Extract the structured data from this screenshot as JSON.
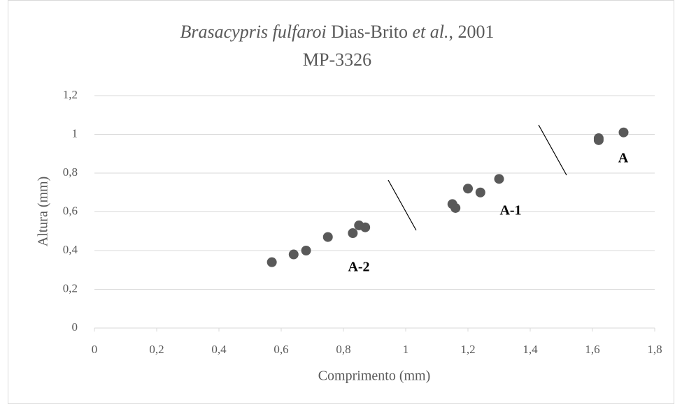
{
  "chart_data": {
    "type": "scatter",
    "title_segments": [
      {
        "text": "Brasacypris fulfaroi",
        "italic": true
      },
      {
        "text": " Dias-Brito ",
        "italic": false
      },
      {
        "text": "et al.",
        "italic": true
      },
      {
        "text": ", 2001",
        "italic": false
      }
    ],
    "subtitle": "MP-3326",
    "xlabel": "Comprimento (mm)",
    "ylabel": "Altura (mm)",
    "x": [
      0.57,
      0.64,
      0.68,
      0.75,
      0.83,
      0.85,
      0.87,
      1.15,
      1.16,
      1.2,
      1.24,
      1.3,
      1.62,
      1.62,
      1.7
    ],
    "values": [
      0.34,
      0.38,
      0.4,
      0.47,
      0.49,
      0.53,
      0.52,
      0.64,
      0.62,
      0.72,
      0.7,
      0.77,
      0.98,
      0.97,
      1.01
    ],
    "color": "#595959",
    "xlim": [
      0,
      1.8
    ],
    "xticks": [
      0,
      {
        "value": 0.2,
        "label": "0,2"
      },
      {
        "value": 0.4,
        "label": "0,4"
      },
      {
        "value": 0.6,
        "label": "0,6"
      },
      {
        "value": 0.8,
        "label": "0,8"
      },
      1,
      {
        "value": 1.2,
        "label": "1,2"
      },
      {
        "value": 1.4,
        "label": "1,4"
      },
      {
        "value": 1.6,
        "label": "1,6"
      },
      {
        "value": 1.8,
        "label": "1,8"
      }
    ],
    "ylim": [
      0,
      1.2
    ],
    "yticks": [
      0,
      {
        "value": 0.2,
        "label": "0,2"
      },
      {
        "value": 0.4,
        "label": "0,4"
      },
      {
        "value": 0.6,
        "label": "0,6"
      },
      {
        "value": 0.8,
        "label": "0,8"
      },
      1,
      {
        "value": 1.2,
        "label": "1,2"
      }
    ],
    "grid": true,
    "annotations": [
      "A-2",
      "A-1",
      "A"
    ]
  }
}
